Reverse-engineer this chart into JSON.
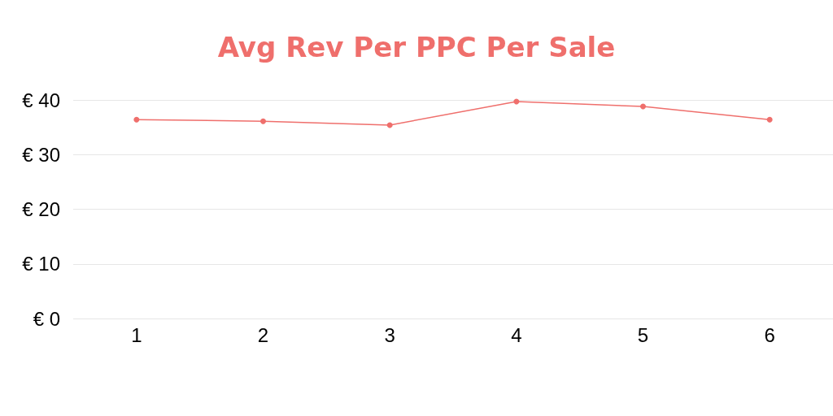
{
  "chart_data": {
    "type": "line",
    "title": "Avg Rev Per PPC Per Sale",
    "categories": [
      "1",
      "2",
      "3",
      "4",
      "5",
      "6"
    ],
    "series": [
      {
        "color": "#ef6f6c",
        "values": [
          36.4,
          36.1,
          35.4,
          39.7,
          38.8,
          36.4
        ]
      }
    ],
    "ylim": [
      0,
      40
    ],
    "yticks": [
      {
        "value": 0,
        "label": "€ 0"
      },
      {
        "value": 10,
        "label": "€ 10"
      },
      {
        "value": 20,
        "label": "€ 20"
      },
      {
        "value": 30,
        "label": "€ 30"
      },
      {
        "value": 40,
        "label": "€ 40"
      }
    ],
    "grid": "y",
    "marker": "circle",
    "line_style": "solid"
  }
}
